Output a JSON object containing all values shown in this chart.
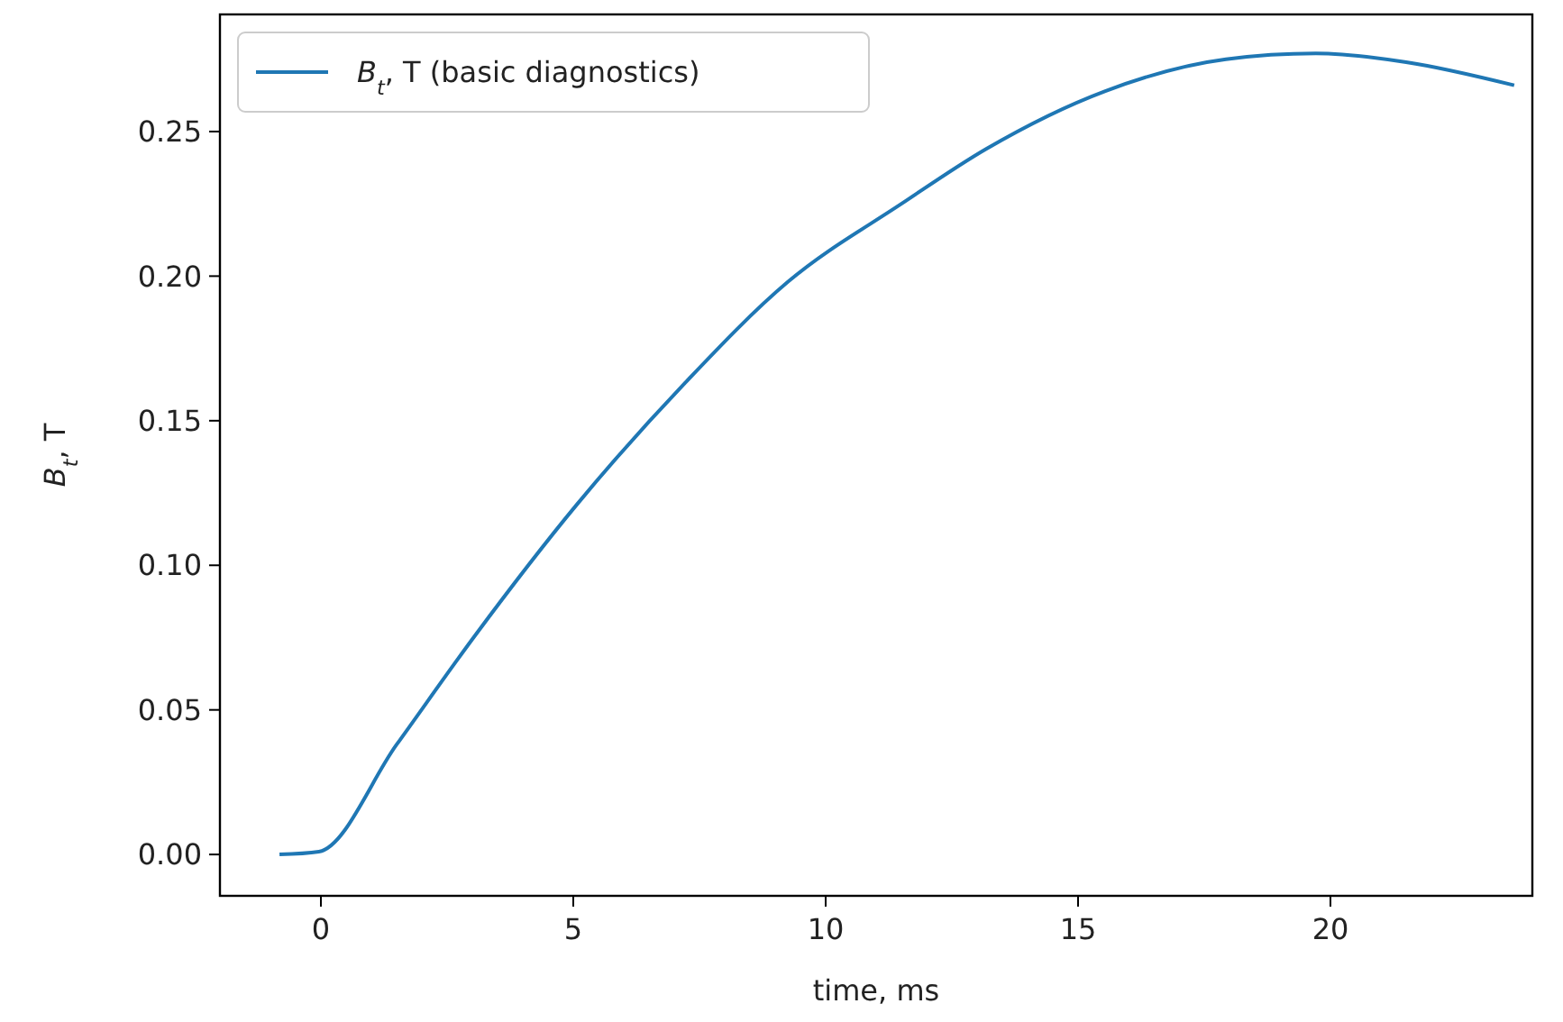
{
  "chart_data": {
    "type": "line",
    "xlabel": "time, ms",
    "ylabel": "B$_{t}$, T",
    "xlim": [
      -2,
      24
    ],
    "ylim": [
      -0.0143,
      0.2905
    ],
    "xticks": [
      0,
      5,
      10,
      15,
      20
    ],
    "yticks": [
      {
        "value": 0,
        "label": "0.00"
      },
      {
        "value": 0.05,
        "label": "0.05"
      },
      {
        "value": 0.1,
        "label": "0.10"
      },
      {
        "value": 0.15,
        "label": "0.15"
      },
      {
        "value": 0.2,
        "label": "0.20"
      },
      {
        "value": 0.25,
        "label": "0.25"
      }
    ],
    "grid": false,
    "legend": "top left",
    "series": [
      {
        "name": "B$_{t}$, T (basic diagnostics)",
        "color": "#1f77b4",
        "x": [
          -0.82,
          -0.04,
          1.5,
          3.04,
          5.07,
          7.21,
          9.25,
          11.5,
          13.18,
          15.54,
          17.93,
          19.71,
          21.5,
          23.64
        ],
        "values": [
          0.0,
          0.001,
          0.038,
          0.0754,
          0.121,
          0.163,
          0.198,
          0.225,
          0.244,
          0.264,
          0.275,
          0.277,
          0.274,
          0.266
        ]
      }
    ]
  }
}
